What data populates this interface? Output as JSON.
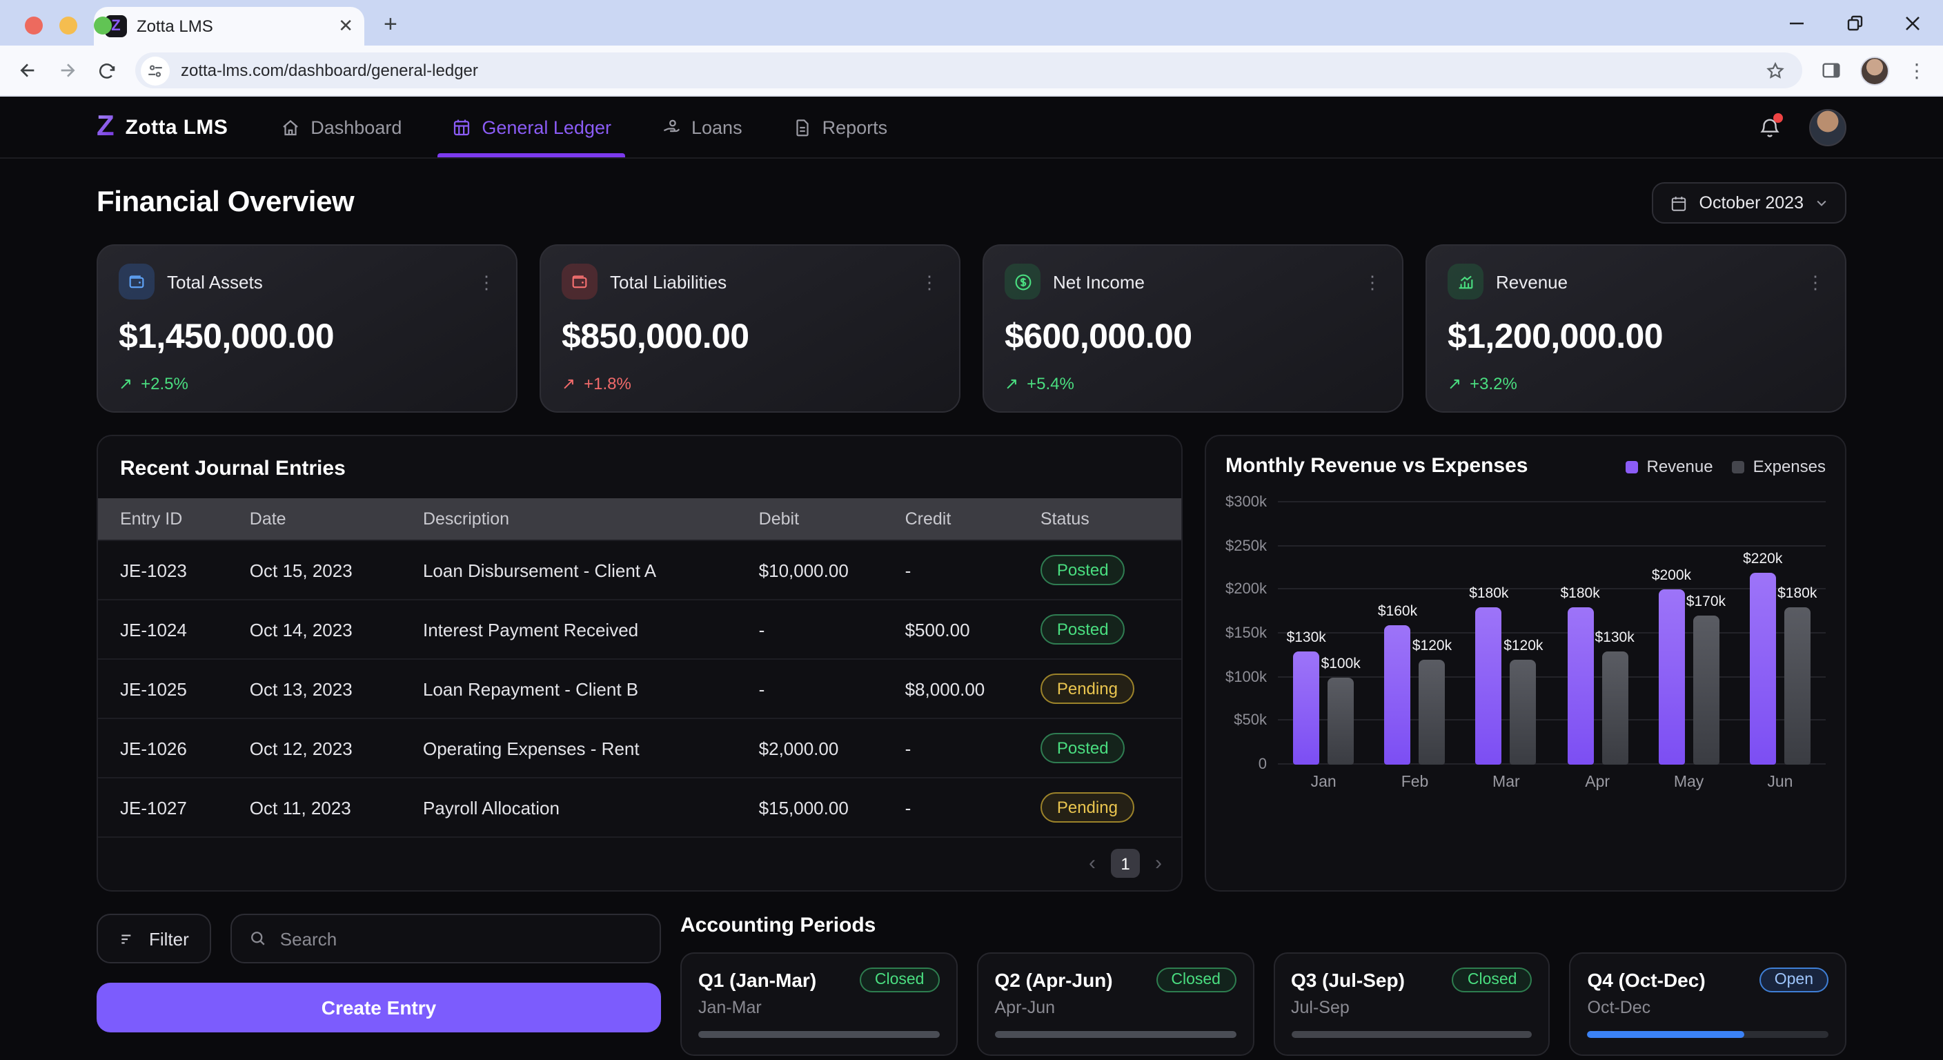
{
  "browser": {
    "tab_title": "Zotta LMS",
    "url": "zotta-lms.com/dashboard/general-ledger"
  },
  "nav": {
    "brand_letter": "Z",
    "brand": "Zotta LMS",
    "items": [
      {
        "label": "Dashboard",
        "icon": "home-icon",
        "active": false
      },
      {
        "label": "General Ledger",
        "icon": "ledger-icon",
        "active": true
      },
      {
        "label": "Loans",
        "icon": "hand-coin-icon",
        "active": false
      },
      {
        "label": "Reports",
        "icon": "report-icon",
        "active": false
      }
    ]
  },
  "page": {
    "title": "Financial Overview",
    "period_selector": "October 2023"
  },
  "theme": {
    "accent_purple": "#8b5cf6",
    "positive_green": "#4ade80",
    "negative_red": "#f16a6a",
    "open_blue": "#3b82f6"
  },
  "stats": [
    {
      "label": "Total Assets",
      "value": "$1,450,000.00",
      "delta": "+2.5%",
      "trend_icon": "arrow-up-right-icon",
      "trend": "up"
    },
    {
      "label": "Total Liabilities",
      "value": "$850,000.00",
      "delta": "+1.8%",
      "trend_icon": "arrow-up-right-icon",
      "trend": "bad"
    },
    {
      "label": "Net Income",
      "value": "$600,000.00",
      "delta": "+5.4%",
      "trend_icon": "arrow-up-right-icon",
      "trend": "up"
    },
    {
      "label": "Revenue",
      "value": "$1,200,000.00",
      "delta": "+3.2%",
      "trend_icon": "arrow-up-right-icon",
      "trend": "up"
    }
  ],
  "journal": {
    "title": "Recent Journal Entries",
    "columns": [
      "Entry ID",
      "Date",
      "Description",
      "Debit",
      "Credit",
      "Status"
    ],
    "rows": [
      {
        "id": "JE-1023",
        "date": "Oct 15, 2023",
        "description": "Loan Disbursement - Client A",
        "debit": "$10,000.00",
        "credit": "-",
        "status": "Posted"
      },
      {
        "id": "JE-1024",
        "date": "Oct 14, 2023",
        "description": "Interest Payment Received",
        "debit": "-",
        "credit": "$500.00",
        "status": "Posted"
      },
      {
        "id": "JE-1025",
        "date": "Oct 13, 2023",
        "description": "Loan Repayment - Client B",
        "debit": "-",
        "credit": "$8,000.00",
        "status": "Pending"
      },
      {
        "id": "JE-1026",
        "date": "Oct 12, 2023",
        "description": "Operating Expenses - Rent",
        "debit": "$2,000.00",
        "credit": "-",
        "status": "Posted"
      },
      {
        "id": "JE-1027",
        "date": "Oct 11, 2023",
        "description": "Payroll Allocation",
        "debit": "$15,000.00",
        "credit": "-",
        "status": "Pending"
      }
    ],
    "pagination": {
      "prev": "‹",
      "current_page": "1",
      "next": "›"
    }
  },
  "chart_data": {
    "type": "bar",
    "title": "Monthly Revenue vs Expenses",
    "categories": [
      "Jan",
      "Feb",
      "Mar",
      "Apr",
      "May",
      "Jun"
    ],
    "series": [
      {
        "name": "Revenue",
        "color": "#8b5cf6",
        "values": [
          130000,
          160000,
          180000,
          180000,
          200000,
          220000
        ],
        "labels": [
          "$130k",
          "$160k",
          "$180k",
          "$180k",
          "$200k",
          "$220k"
        ]
      },
      {
        "name": "Expenses",
        "color": "#45464d",
        "values": [
          100000,
          120000,
          120000,
          130000,
          170000,
          180000
        ],
        "labels": [
          "$100k",
          "$120k",
          "$120k",
          "$130k",
          "$170k",
          "$180k"
        ]
      }
    ],
    "ylim": [
      0,
      300000
    ],
    "yticks": [
      {
        "value": 0,
        "label": "0"
      },
      {
        "value": 50000,
        "label": "$50k"
      },
      {
        "value": 100000,
        "label": "$100k"
      },
      {
        "value": 150000,
        "label": "$150k"
      },
      {
        "value": 200000,
        "label": "$200k"
      },
      {
        "value": 250000,
        "label": "$250k"
      },
      {
        "value": 300000,
        "label": "$300k"
      }
    ],
    "grid": true,
    "legend_position": "top-right",
    "legend": [
      "Revenue",
      "Expenses"
    ]
  },
  "actions": {
    "filter_label": "Filter",
    "search_placeholder": "Search",
    "create_label": "Create Entry"
  },
  "periods": {
    "title": "Accounting Periods",
    "items": [
      {
        "name": "Q1 (Jan-Mar)",
        "range": "Jan-Mar",
        "status": "Closed",
        "progress": 100,
        "bar_color": "#4a4d55"
      },
      {
        "name": "Q2 (Apr-Jun)",
        "range": "Apr-Jun",
        "status": "Closed",
        "progress": 100,
        "bar_color": "#4a4d55"
      },
      {
        "name": "Q3 (Jul-Sep)",
        "range": "Jul-Sep",
        "status": "Closed",
        "progress": 100,
        "bar_color": "#43454c"
      },
      {
        "name": "Q4 (Oct-Dec)",
        "range": "Oct-Dec",
        "status": "Open",
        "progress": 65,
        "bar_color": "#3b82f6"
      }
    ]
  }
}
